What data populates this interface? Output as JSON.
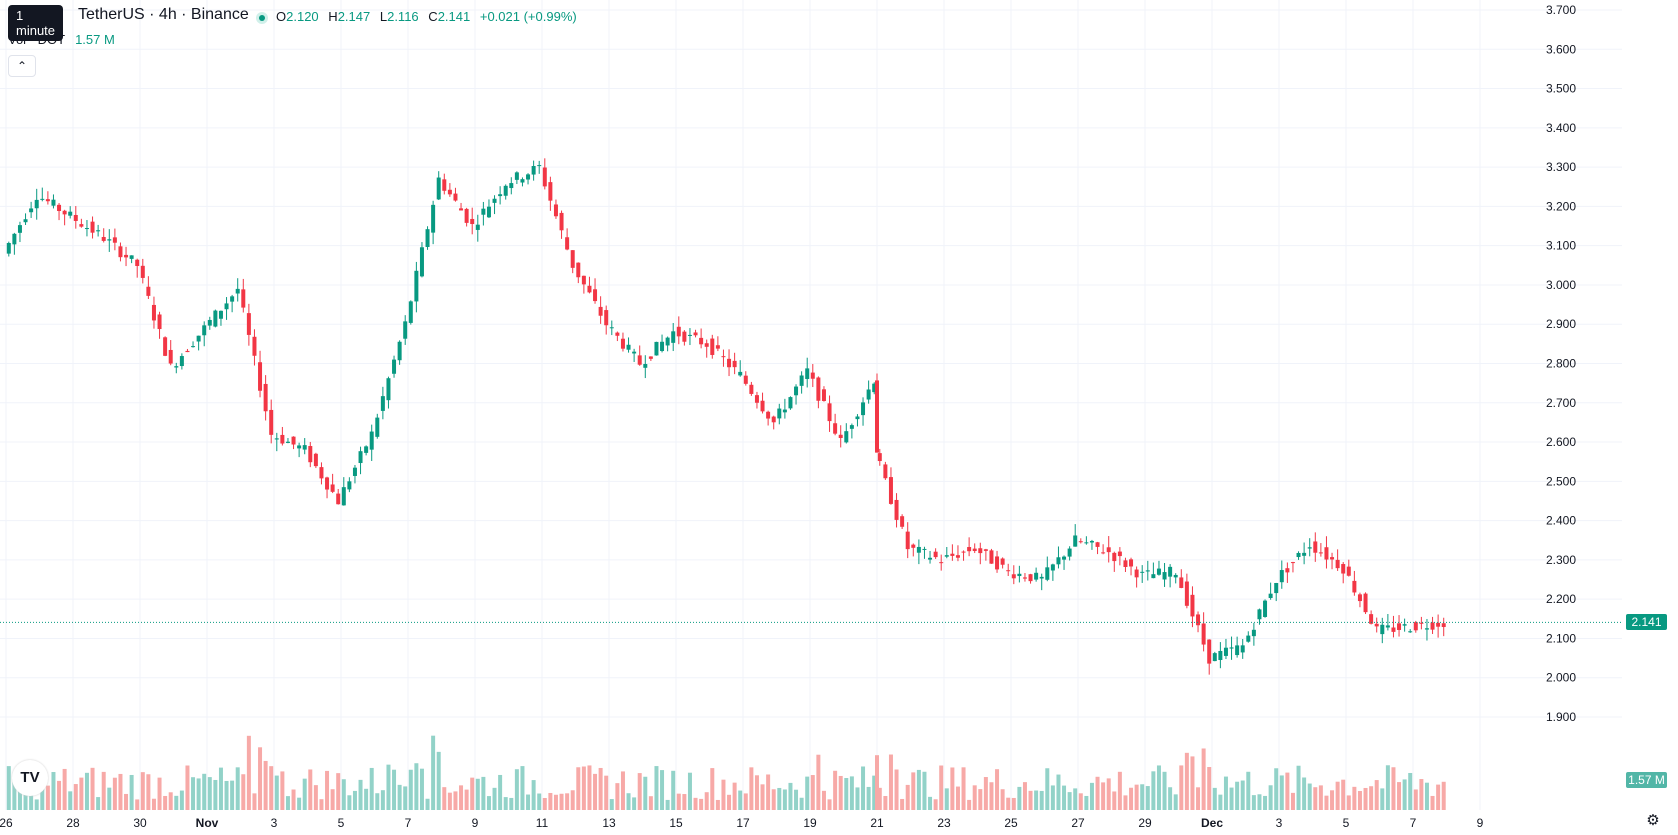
{
  "header": {
    "tooltip": "1 minute",
    "symbol": "TetherUS · 4h · Binance",
    "ohlc": {
      "open_label": "O",
      "open": "2.120",
      "high_label": "H",
      "high": "2.147",
      "low_label": "L",
      "low": "2.116",
      "close_label": "C",
      "close": "2.141",
      "change": "+0.021 (+0.99%)"
    },
    "volume": {
      "label": "Vol · DOT",
      "value": "1.57 M"
    },
    "collapse_icon": "chevron-up-icon"
  },
  "footer": {
    "logo": "TV",
    "settings_icon": "gear-icon"
  },
  "price_badge": "2.141",
  "volume_badge": "1.57 M",
  "colors": {
    "up": "#089981",
    "down": "#f23645",
    "up_vol": "#92d2c8",
    "down_vol": "#f7a9a7",
    "grid": "#f0f3fa"
  },
  "chart_data": {
    "type": "candlestick",
    "y_axis": {
      "ticks": [
        "1.900",
        "2.000",
        "2.100",
        "2.200",
        "2.300",
        "2.400",
        "2.500",
        "2.600",
        "2.700",
        "2.800",
        "2.900",
        "3.000",
        "3.100",
        "3.200",
        "3.300",
        "3.400",
        "3.500",
        "3.600",
        "3.700"
      ],
      "range": [
        1.9,
        3.7
      ]
    },
    "x_axis": {
      "labels": [
        "26",
        "28",
        "30",
        "Nov",
        "3",
        "5",
        "7",
        "9",
        "11",
        "13",
        "15",
        "17",
        "19",
        "21",
        "23",
        "25",
        "27",
        "29",
        "Dec",
        "3",
        "5",
        "7",
        "9"
      ]
    },
    "last_price": 2.141,
    "key_points": [
      {
        "date": "Oct 26",
        "price": 3.08
      },
      {
        "date": "Oct 27",
        "price": 3.23
      },
      {
        "date": "Oct 29",
        "price": 3.12
      },
      {
        "date": "Oct 30",
        "price": 3.05
      },
      {
        "date": "Oct 31",
        "price": 2.79
      },
      {
        "date": "Nov 2",
        "price": 2.99
      },
      {
        "date": "Nov 3",
        "price": 2.62
      },
      {
        "date": "Nov 4",
        "price": 2.58
      },
      {
        "date": "Nov 5",
        "price": 2.45
      },
      {
        "date": "Nov 6",
        "price": 2.62
      },
      {
        "date": "Nov 7",
        "price": 2.9
      },
      {
        "date": "Nov 8",
        "price": 3.27
      },
      {
        "date": "Nov 9",
        "price": 3.15
      },
      {
        "date": "Nov 10",
        "price": 3.26
      },
      {
        "date": "Nov 11",
        "price": 3.3
      },
      {
        "date": "Nov 12",
        "price": 3.05
      },
      {
        "date": "Nov 13",
        "price": 2.9
      },
      {
        "date": "Nov 14",
        "price": 2.8
      },
      {
        "date": "Nov 15",
        "price": 2.88
      },
      {
        "date": "Nov 16",
        "price": 2.85
      },
      {
        "date": "Nov 17",
        "price": 2.77
      },
      {
        "date": "Nov 18",
        "price": 2.65
      },
      {
        "date": "Nov 19",
        "price": 2.78
      },
      {
        "date": "Nov 20",
        "price": 2.6
      },
      {
        "date": "Nov 21",
        "price": 2.76
      },
      {
        "date": "Nov 21",
        "price": 2.58
      },
      {
        "date": "Nov 22",
        "price": 2.33
      },
      {
        "date": "Nov 23",
        "price": 2.3
      },
      {
        "date": "Nov 24",
        "price": 2.33
      },
      {
        "date": "Nov 25",
        "price": 2.27
      },
      {
        "date": "Nov 26",
        "price": 2.25
      },
      {
        "date": "Nov 27",
        "price": 2.35
      },
      {
        "date": "Nov 28",
        "price": 2.32
      },
      {
        "date": "Nov 29",
        "price": 2.26
      },
      {
        "date": "Nov 30",
        "price": 2.27
      },
      {
        "date": "Dec 1",
        "price": 2.05
      },
      {
        "date": "Dec 2",
        "price": 2.08
      },
      {
        "date": "Dec 3",
        "price": 2.25
      },
      {
        "date": "Dec 4",
        "price": 2.34
      },
      {
        "date": "Dec 5",
        "price": 2.28
      },
      {
        "date": "Dec 6",
        "price": 2.12
      },
      {
        "date": "Dec 7",
        "price": 2.13
      },
      {
        "date": "Dec 8",
        "price": 2.141
      }
    ]
  }
}
